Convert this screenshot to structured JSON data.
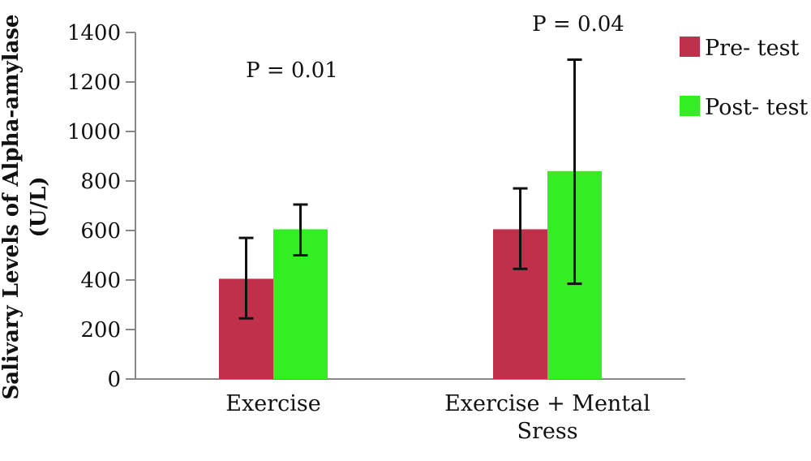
{
  "chart_data": {
    "type": "bar",
    "ylabel_line1": "Salivary Levels of Alpha-amylase",
    "ylabel_line2": "(U/L)",
    "ylim": [
      0,
      1400
    ],
    "yticks": [
      "0",
      "200",
      "400",
      "600",
      "800",
      "1000",
      "1200",
      "1400"
    ],
    "categories": [
      {
        "lines": [
          "Exercise"
        ]
      },
      {
        "lines": [
          "Exercise + Mental",
          "Sress"
        ]
      }
    ],
    "series": [
      {
        "name": "Pre- test",
        "color": "#c0304a",
        "values": [
          405,
          605
        ],
        "err_low": [
          245,
          445
        ],
        "err_high": [
          570,
          770
        ]
      },
      {
        "name": "Post- test",
        "color": "#33ee22",
        "values": [
          605,
          840
        ],
        "err_low": [
          500,
          385
        ],
        "err_high": [
          705,
          1290
        ]
      }
    ],
    "annotations": [
      "P = 0.01",
      "P = 0.04"
    ],
    "legend_position": "top-right",
    "grid": false
  }
}
